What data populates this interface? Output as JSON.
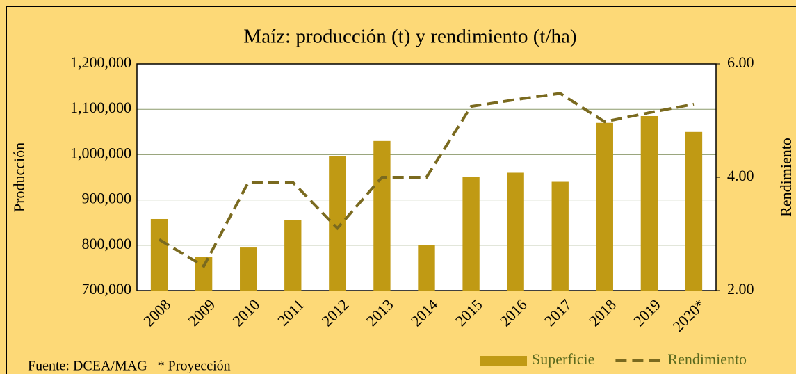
{
  "chart_data": {
    "type": "bar_line",
    "title": "Maíz: producción (t) y rendimiento (t/ha)",
    "ylabel": "Producción",
    "y2label": "Rendimiento",
    "source": "Fuente: DCEA/MAG   * Proyección",
    "categories": [
      "2008",
      "2009",
      "2010",
      "2011",
      "2012",
      "2013",
      "2014",
      "2015",
      "2016",
      "2017",
      "2018",
      "2019",
      "2020*"
    ],
    "series": [
      {
        "name": "Superficie",
        "color": "#c09a14",
        "kind": "bar",
        "values": [
          858000,
          774000,
          795000,
          855000,
          996000,
          1030000,
          800000,
          950000,
          960000,
          940000,
          1070000,
          1085000,
          1050000
        ]
      },
      {
        "name": "Rendimiento",
        "color": "#7a6a1f",
        "kind": "line",
        "axis": "y2",
        "values": [
          2.9,
          2.43,
          3.91,
          3.91,
          3.1,
          4.0,
          4.0,
          5.25,
          5.37,
          5.48,
          4.98,
          5.14,
          5.29
        ]
      }
    ],
    "ylim": [
      700000,
      1200000
    ],
    "yticks": [
      {
        "value": 700000,
        "label": "700,000"
      },
      {
        "value": 800000,
        "label": "800,000"
      },
      {
        "value": 900000,
        "label": "900,000"
      },
      {
        "value": 1000000,
        "label": "1,000,000"
      },
      {
        "value": 1100000,
        "label": "1,100,000"
      },
      {
        "value": 1200000,
        "label": "1,200,000"
      }
    ],
    "y2lim": [
      2,
      6
    ],
    "y2ticks": [
      {
        "value": 2,
        "label": "2.00"
      },
      {
        "value": 4,
        "label": "4.00"
      },
      {
        "value": 6,
        "label": "6.00"
      }
    ],
    "grid": true
  }
}
